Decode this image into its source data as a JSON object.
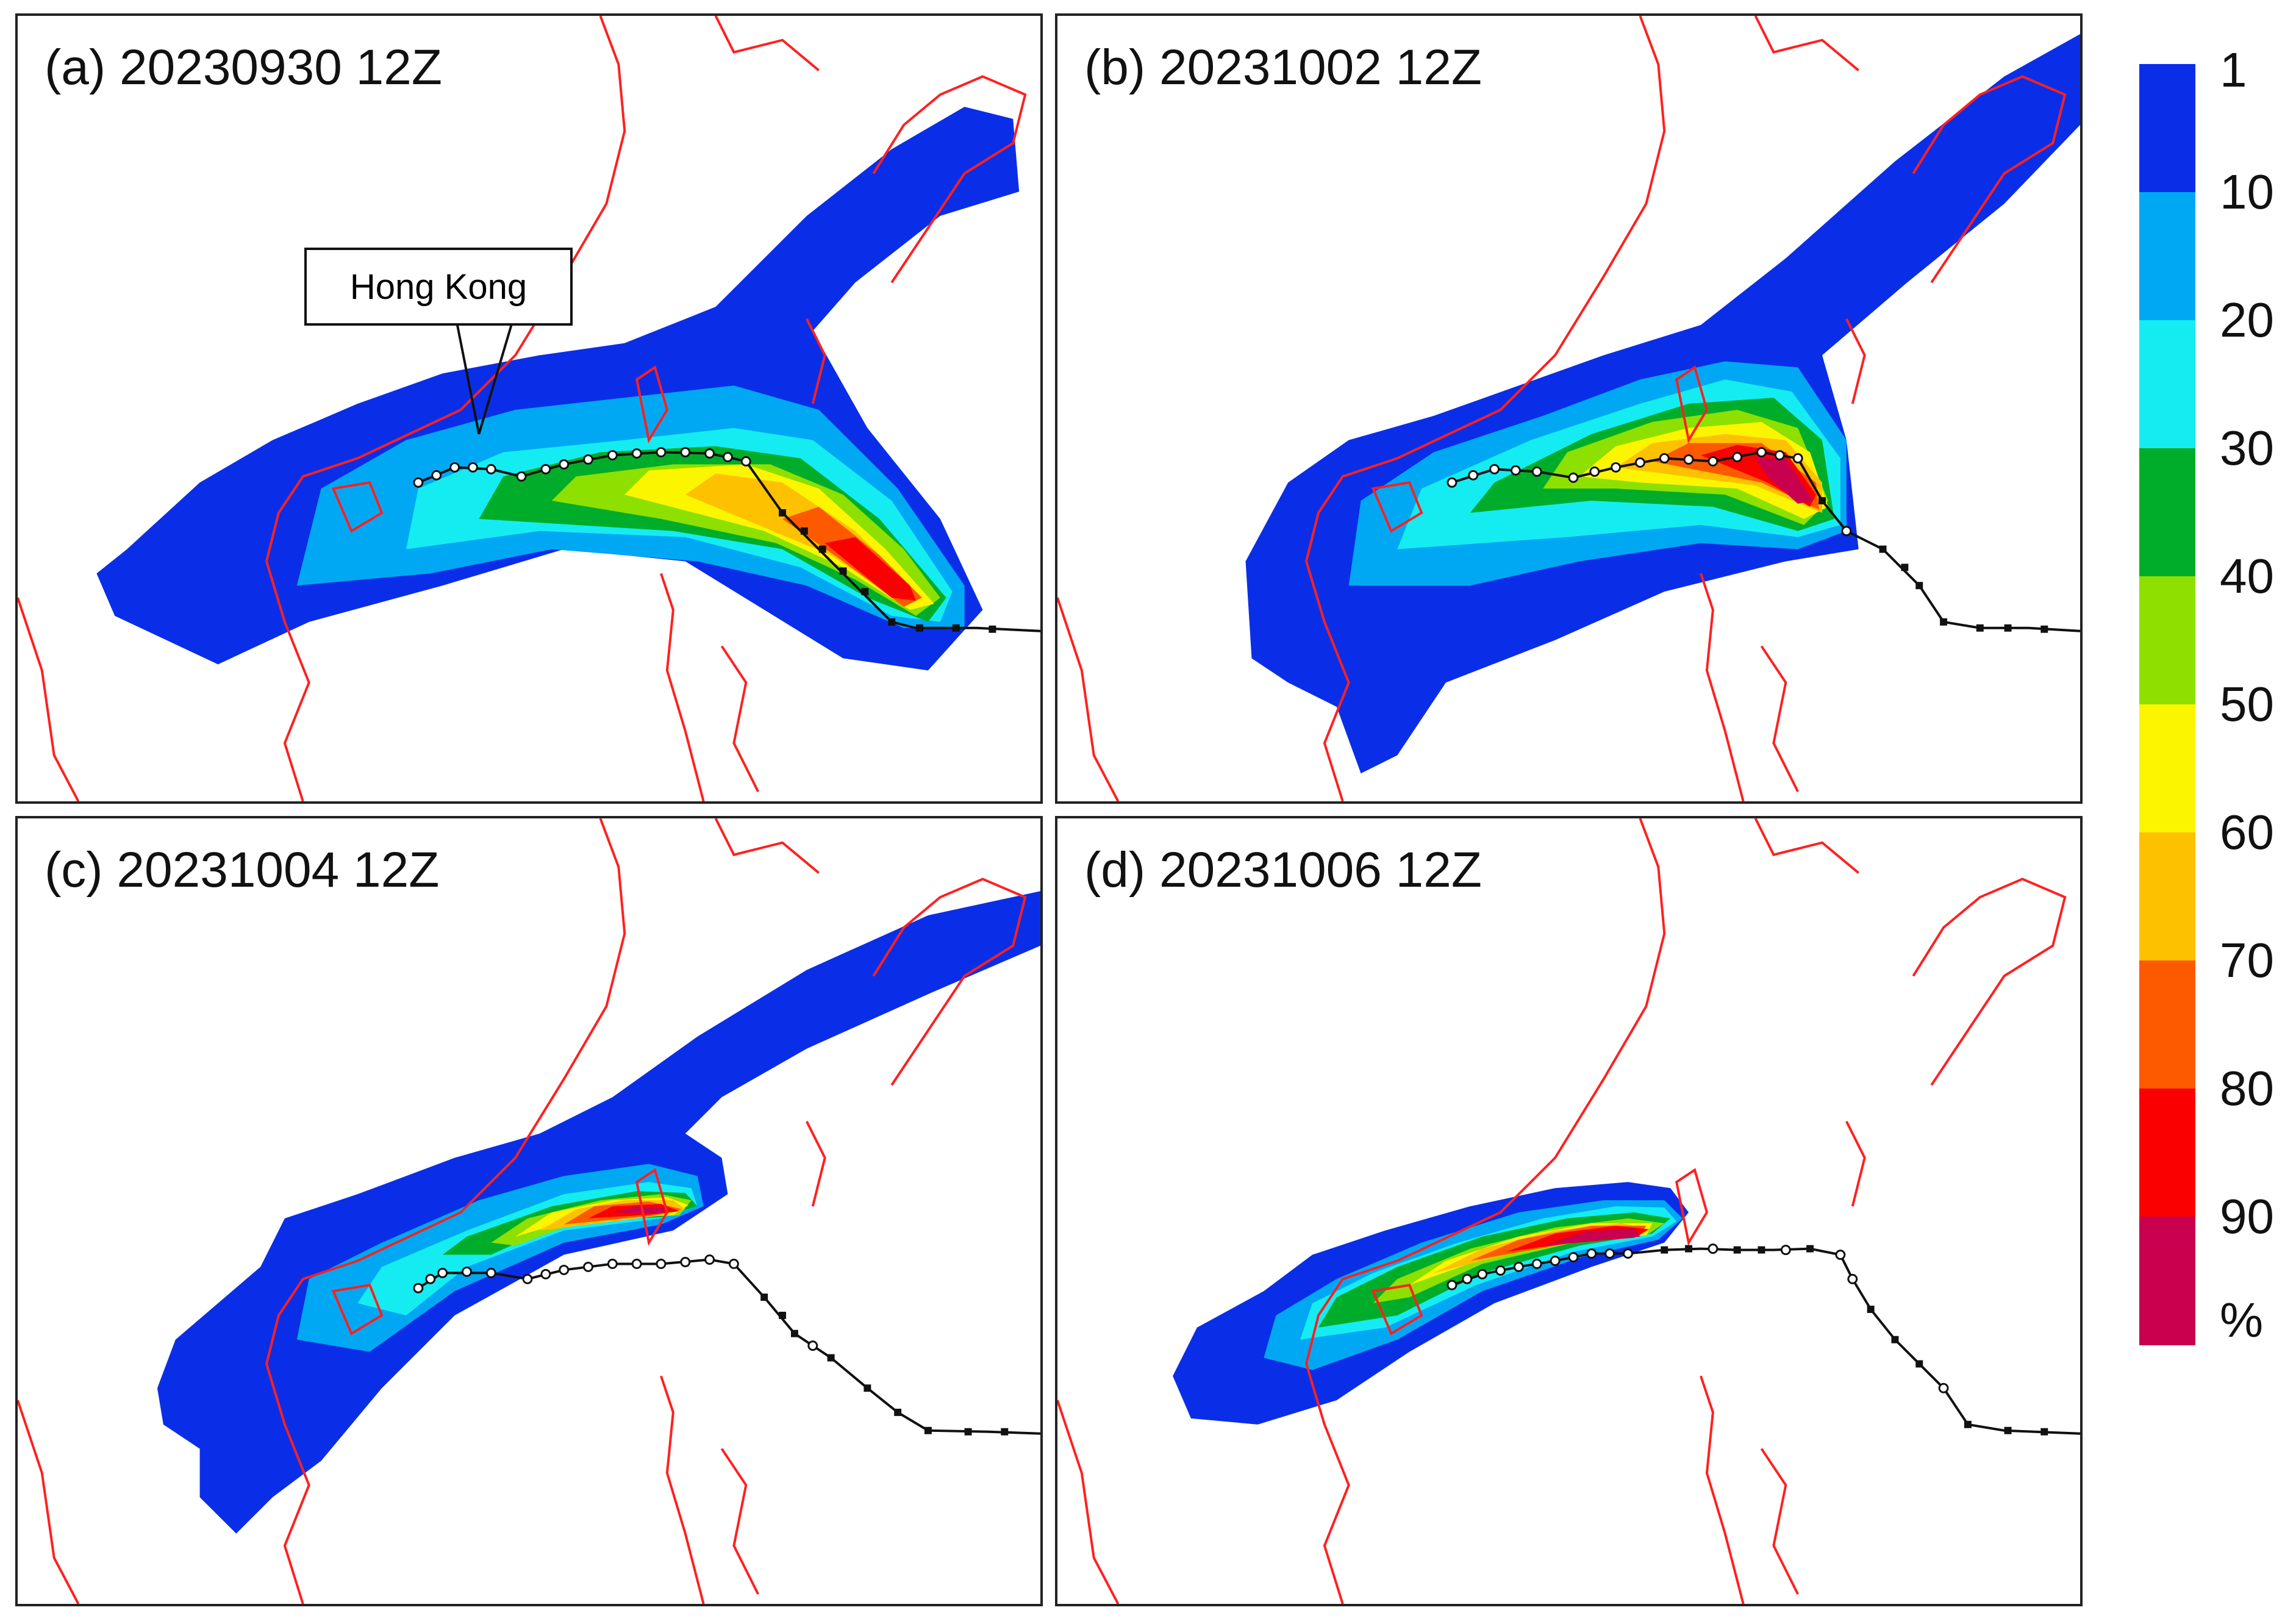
{
  "panels": [
    {
      "id": "a",
      "title": "(a) 20230930 12Z"
    },
    {
      "id": "b",
      "title": "(b) 20231002 12Z"
    },
    {
      "id": "c",
      "title": "(c) 20231004 12Z"
    },
    {
      "id": "d",
      "title": "(d) 20231006 12Z"
    }
  ],
  "annotation": {
    "label": "Hong Kong"
  },
  "colorbar": {
    "ticks": [
      "1",
      "10",
      "20",
      "30",
      "40",
      "50",
      "60",
      "70",
      "80",
      "90"
    ],
    "unit": "%",
    "colors": [
      "#0a2ee8",
      "#00a8f4",
      "#15ecf2",
      "#00ad2a",
      "#8de000",
      "#fcf500",
      "#fec100",
      "#fd5a00",
      "#fa0000",
      "#c8004e"
    ]
  },
  "map": {
    "coastline_color": "#ff2020",
    "track_color": "#111111"
  }
}
